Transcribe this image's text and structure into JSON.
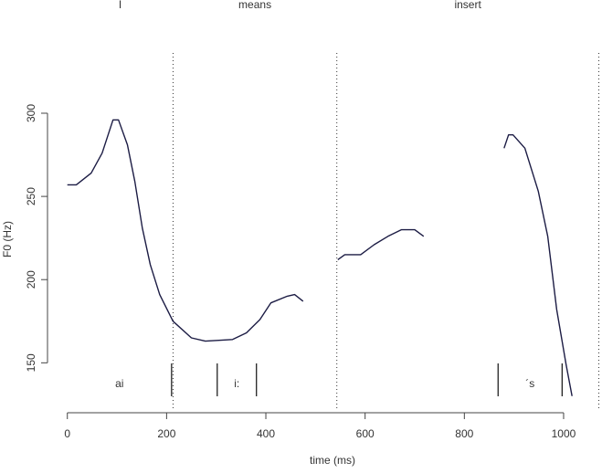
{
  "chart_data": {
    "type": "line",
    "ylabel": "F0 (Hz)",
    "xlabel": "time (ms)",
    "xlim": [
      -40,
      1070
    ],
    "ylim": [
      120,
      345
    ],
    "xticks": [
      0,
      200,
      400,
      600,
      800,
      1000
    ],
    "yticks": [
      150,
      200,
      250,
      300
    ],
    "words": [
      "I",
      "means",
      "insert"
    ],
    "word_boundaries": [
      213,
      543,
      1071
    ],
    "segments": [
      "ai",
      "i:",
      "´s"
    ],
    "segment_boundaries": [
      210,
      302,
      381,
      868,
      997
    ],
    "color": "#1c1c44",
    "x": [
      0,
      18,
      48,
      70,
      92,
      103,
      121,
      136,
      151,
      167,
      186,
      213,
      250,
      278,
      333,
      361,
      388,
      410,
      443,
      458,
      475,
      null,
      545,
      559,
      591,
      618,
      646,
      673,
      700,
      718,
      null,
      880,
      889,
      898,
      922,
      949,
      968,
      986,
      1005,
      1017
    ],
    "values": [
      257,
      257,
      264,
      276,
      296,
      296,
      281,
      259,
      231,
      209,
      191,
      175,
      165,
      163,
      164,
      168,
      176,
      186,
      190,
      191,
      187,
      null,
      212,
      215,
      215,
      221,
      226,
      230,
      230,
      226,
      null,
      279,
      287,
      287,
      279,
      253,
      226,
      182,
      149,
      130
    ]
  }
}
